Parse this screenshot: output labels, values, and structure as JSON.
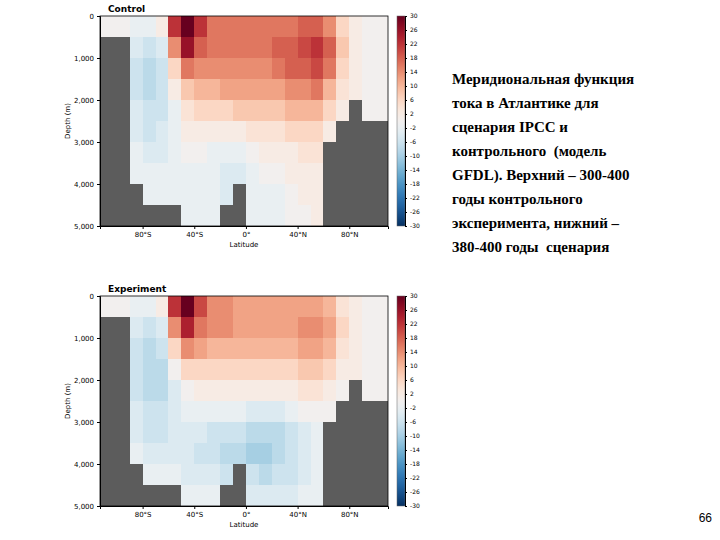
{
  "chart_data": [
    {
      "type": "heatmap",
      "title": "Control",
      "x_label": "Latitude",
      "y_label": "Depth (m)",
      "xlim": [
        -113,
        110
      ],
      "ylim": [
        0,
        5000
      ],
      "xticks": [
        {
          "value": -80,
          "label": "80°S"
        },
        {
          "value": -40,
          "label": "40°S"
        },
        {
          "value": 0,
          "label": "0°"
        },
        {
          "value": 40,
          "label": "40°N"
        },
        {
          "value": 80,
          "label": "80°N"
        }
      ],
      "yticks": [
        0,
        {
          "value": 1000,
          "label": "1,000"
        },
        {
          "value": 2000,
          "label": "2,000"
        },
        {
          "value": 3000,
          "label": "3,000"
        },
        {
          "value": 4000,
          "label": "4,000"
        },
        {
          "value": 5000,
          "label": "5,000"
        }
      ],
      "x_bins": [
        -113,
        -100,
        -90,
        -80,
        -70,
        -60,
        -50,
        -40,
        -30,
        -20,
        -10,
        0,
        10,
        20,
        30,
        40,
        50,
        60,
        70,
        80,
        90,
        100,
        110
      ],
      "y_bins": [
        0,
        500,
        1000,
        1500,
        2000,
        2500,
        3000,
        3500,
        4000,
        4500,
        5000
      ],
      "z": [
        [
          0,
          0,
          -2,
          -2,
          2,
          22,
          30,
          22,
          16,
          16,
          16,
          16,
          16,
          16,
          16,
          18,
          18,
          14,
          6,
          2,
          0,
          0
        ],
        [
          null,
          null,
          -4,
          -6,
          -4,
          14,
          26,
          18,
          16,
          16,
          16,
          16,
          16,
          18,
          18,
          20,
          22,
          18,
          8,
          2,
          0,
          0
        ],
        [
          null,
          null,
          -6,
          -8,
          -6,
          6,
          16,
          14,
          14,
          14,
          14,
          14,
          14,
          16,
          18,
          18,
          20,
          16,
          6,
          2,
          0,
          0
        ],
        [
          null,
          null,
          -6,
          -8,
          -6,
          2,
          8,
          10,
          10,
          12,
          12,
          12,
          12,
          12,
          14,
          14,
          16,
          10,
          4,
          2,
          0,
          0
        ],
        [
          null,
          null,
          -4,
          -6,
          -6,
          -2,
          4,
          6,
          6,
          6,
          8,
          8,
          8,
          8,
          10,
          10,
          10,
          6,
          2,
          null,
          0,
          0
        ],
        [
          null,
          null,
          -4,
          -6,
          -4,
          -2,
          2,
          2,
          2,
          2,
          2,
          4,
          4,
          4,
          6,
          6,
          6,
          2,
          null,
          null,
          null,
          null
        ],
        [
          null,
          null,
          -2,
          -4,
          -4,
          -2,
          0,
          0,
          -2,
          -2,
          -2,
          0,
          2,
          2,
          2,
          4,
          4,
          null,
          null,
          null,
          null,
          null
        ],
        [
          null,
          null,
          -2,
          -2,
          -2,
          -2,
          -2,
          -2,
          -2,
          -4,
          -4,
          -2,
          0,
          0,
          2,
          2,
          2,
          null,
          null,
          null,
          null,
          null
        ],
        [
          null,
          null,
          null,
          -2,
          -2,
          -2,
          -2,
          -2,
          -2,
          -4,
          null,
          -2,
          -2,
          -2,
          0,
          2,
          2,
          null,
          null,
          null,
          null,
          null
        ],
        [
          null,
          null,
          null,
          null,
          null,
          null,
          -2,
          -2,
          -2,
          null,
          null,
          -2,
          -2,
          -2,
          0,
          0,
          2,
          null,
          null,
          null,
          null,
          null
        ]
      ],
      "color_range": [
        -30,
        30
      ],
      "color_ticks": [
        30,
        26,
        22,
        18,
        14,
        10,
        6,
        2,
        -2,
        -6,
        -10,
        -14,
        -18,
        -22,
        -26,
        -30
      ]
    },
    {
      "type": "heatmap",
      "title": "Experiment",
      "x_label": "Latitude",
      "y_label": "Depth (m)",
      "xlim": [
        -113,
        110
      ],
      "ylim": [
        0,
        5000
      ],
      "xticks": [
        {
          "value": -80,
          "label": "80°S"
        },
        {
          "value": -40,
          "label": "40°S"
        },
        {
          "value": 0,
          "label": "0°"
        },
        {
          "value": 40,
          "label": "40°N"
        },
        {
          "value": 80,
          "label": "80°N"
        }
      ],
      "yticks": [
        0,
        {
          "value": 1000,
          "label": "1,000"
        },
        {
          "value": 2000,
          "label": "2,000"
        },
        {
          "value": 3000,
          "label": "3,000"
        },
        {
          "value": 4000,
          "label": "4,000"
        },
        {
          "value": 5000,
          "label": "5,000"
        }
      ],
      "x_bins": [
        -113,
        -100,
        -90,
        -80,
        -70,
        -60,
        -50,
        -40,
        -30,
        -20,
        -10,
        0,
        10,
        20,
        30,
        40,
        50,
        60,
        70,
        80,
        90,
        100,
        110
      ],
      "y_bins": [
        0,
        500,
        1000,
        1500,
        2000,
        2500,
        3000,
        3500,
        4000,
        4500,
        5000
      ],
      "z": [
        [
          0,
          0,
          -2,
          -2,
          2,
          22,
          30,
          20,
          14,
          14,
          12,
          12,
          12,
          12,
          12,
          12,
          12,
          10,
          4,
          2,
          0,
          0
        ],
        [
          null,
          null,
          -4,
          -6,
          -4,
          14,
          24,
          16,
          14,
          14,
          12,
          12,
          12,
          12,
          12,
          14,
          14,
          12,
          6,
          2,
          0,
          0
        ],
        [
          null,
          null,
          -6,
          -8,
          -6,
          6,
          14,
          12,
          10,
          10,
          10,
          10,
          10,
          10,
          10,
          12,
          12,
          10,
          4,
          2,
          0,
          0
        ],
        [
          null,
          null,
          -6,
          -8,
          -8,
          0,
          6,
          6,
          6,
          6,
          6,
          6,
          6,
          6,
          6,
          8,
          8,
          6,
          2,
          2,
          0,
          0
        ],
        [
          null,
          null,
          -6,
          -8,
          -8,
          -4,
          0,
          2,
          2,
          2,
          2,
          2,
          2,
          2,
          2,
          4,
          4,
          2,
          0,
          null,
          0,
          0
        ],
        [
          null,
          null,
          -4,
          -6,
          -6,
          -4,
          -2,
          -2,
          -2,
          -2,
          -2,
          -4,
          -4,
          -4,
          -2,
          0,
          0,
          0,
          null,
          null,
          null,
          null
        ],
        [
          null,
          null,
          -4,
          -6,
          -6,
          -4,
          -4,
          -4,
          -6,
          -6,
          -6,
          -8,
          -8,
          -8,
          -6,
          -4,
          -2,
          null,
          null,
          null,
          null,
          null
        ],
        [
          null,
          null,
          -2,
          -4,
          -4,
          -4,
          -4,
          -6,
          -6,
          -8,
          -8,
          -10,
          -10,
          -8,
          -6,
          -4,
          -2,
          null,
          null,
          null,
          null,
          null
        ],
        [
          null,
          null,
          null,
          -2,
          -2,
          -2,
          -4,
          -4,
          -4,
          -6,
          null,
          -6,
          -8,
          -6,
          -6,
          -4,
          -2,
          null,
          null,
          null,
          null,
          null
        ],
        [
          null,
          null,
          null,
          null,
          null,
          null,
          -2,
          -2,
          -2,
          null,
          null,
          -4,
          -4,
          -4,
          -4,
          -2,
          -2,
          null,
          null,
          null,
          null,
          null
        ]
      ],
      "color_range": [
        -30,
        30
      ],
      "color_ticks": [
        30,
        26,
        22,
        18,
        14,
        10,
        6,
        2,
        -2,
        -6,
        -10,
        -14,
        -18,
        -22,
        -26,
        -30
      ]
    }
  ],
  "page": {
    "caption_lines": [
      "Меридиональная функция",
      "тока в Атлантике для",
      "сценария IPCC и",
      "контрольного  (модель",
      "GFDL). Верхний – 300-400",
      "годы контрольного",
      "эксперимента, нижний –",
      "380-400 годы  сценария"
    ],
    "page_number": 66
  }
}
